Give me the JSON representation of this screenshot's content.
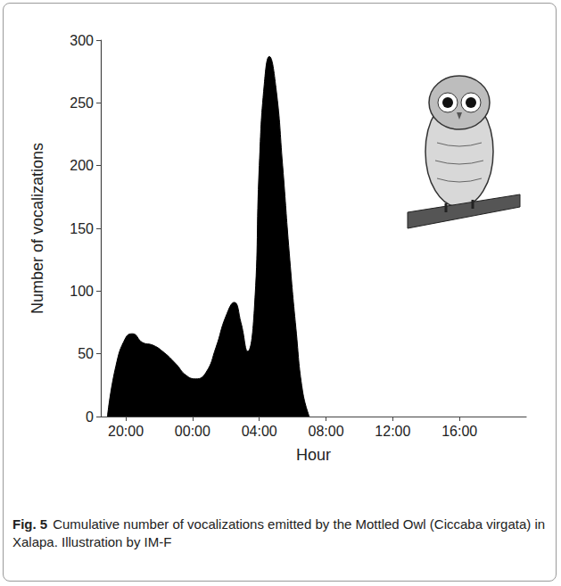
{
  "chart_data": {
    "type": "area",
    "x_label": "Hour",
    "y_label": "Number of vocalizations",
    "caption": {
      "label": "Fig. 5",
      "text": "Cumulative number of vocalizations emitted by the Mottled Owl (Ciccaba virgata) in Xalapa. Illustration by IM-F"
    },
    "x": [
      18.9,
      19.4,
      20.0,
      20.4,
      21.0,
      21.6,
      22.2,
      23.0,
      23.6,
      24.2,
      24.8,
      25.4,
      26.0,
      26.5,
      26.9,
      27.3,
      27.7,
      28.0,
      28.3,
      28.6,
      29.0,
      29.4,
      29.8,
      30.2,
      30.6,
      31.0
    ],
    "values": [
      0,
      40,
      63,
      66,
      59,
      57,
      52,
      42,
      33,
      30,
      35,
      55,
      80,
      91,
      75,
      52,
      85,
      200,
      265,
      287,
      262,
      200,
      130,
      70,
      20,
      0
    ],
    "color": "#000000",
    "xlim": [
      18.5,
      44
    ],
    "xticks": [
      {
        "value": 20,
        "label": "20:00"
      },
      {
        "value": 24,
        "label": "00:00"
      },
      {
        "value": 28,
        "label": "04:00"
      },
      {
        "value": 32,
        "label": "08:00"
      },
      {
        "value": 36,
        "label": "12:00"
      },
      {
        "value": 40,
        "label": "16:00"
      }
    ],
    "ylim": [
      0,
      300
    ],
    "yticks": [
      0,
      50,
      100,
      150,
      200,
      250,
      300
    ],
    "grid": false
  }
}
